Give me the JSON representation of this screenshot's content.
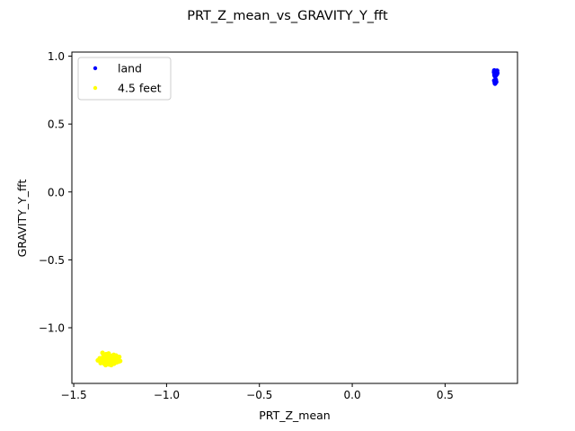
{
  "chart_data": {
    "type": "scatter",
    "title": "PRT_Z_mean_vs_GRAVITY_Y_fft",
    "xlabel": "PRT_Z_mean",
    "ylabel": "GRAVITY_Y_fft",
    "xlim": [
      -1.51,
      0.89
    ],
    "ylim": [
      -1.41,
      1.03
    ],
    "xticks": [
      -1.5,
      -1.0,
      -0.5,
      0.0,
      0.5
    ],
    "xtick_labels": [
      "−1.5",
      "−1.0",
      "−0.5",
      "0.0",
      "0.5"
    ],
    "yticks": [
      1.0,
      0.5,
      0.0,
      -0.5,
      -1.0
    ],
    "ytick_labels": [
      "1.0",
      "0.5",
      "0.0",
      "−0.5",
      "−1.0"
    ],
    "grid": false,
    "legend_position": "top-left",
    "series": [
      {
        "name": "land",
        "color": "#0000ff",
        "points": [
          [
            0.765,
            0.895
          ],
          [
            0.77,
            0.89
          ],
          [
            0.775,
            0.885
          ],
          [
            0.78,
            0.893
          ],
          [
            0.768,
            0.878
          ],
          [
            0.772,
            0.87
          ],
          [
            0.778,
            0.88
          ],
          [
            0.766,
            0.865
          ],
          [
            0.774,
            0.86
          ],
          [
            0.769,
            0.872
          ],
          [
            0.776,
            0.888
          ],
          [
            0.771,
            0.884
          ],
          [
            0.767,
            0.857
          ],
          [
            0.779,
            0.868
          ],
          [
            0.77,
            0.85
          ],
          [
            0.765,
            0.82
          ],
          [
            0.772,
            0.815
          ],
          [
            0.768,
            0.805
          ],
          [
            0.775,
            0.81
          ],
          [
            0.769,
            0.798
          ],
          [
            0.773,
            0.825
          ],
          [
            0.777,
            0.875
          ],
          [
            0.764,
            0.882
          ],
          [
            0.781,
            0.876
          ],
          [
            0.77,
            0.862
          ]
        ]
      },
      {
        "name": "4.5 feet",
        "color": "#ffff00",
        "points": [
          [
            -1.37,
            -1.24
          ],
          [
            -1.36,
            -1.225
          ],
          [
            -1.35,
            -1.25
          ],
          [
            -1.34,
            -1.21
          ],
          [
            -1.335,
            -1.265
          ],
          [
            -1.33,
            -1.235
          ],
          [
            -1.325,
            -1.195
          ],
          [
            -1.32,
            -1.255
          ],
          [
            -1.315,
            -1.225
          ],
          [
            -1.31,
            -1.27
          ],
          [
            -1.305,
            -1.205
          ],
          [
            -1.3,
            -1.245
          ],
          [
            -1.295,
            -1.23
          ],
          [
            -1.29,
            -1.26
          ],
          [
            -1.285,
            -1.2
          ],
          [
            -1.28,
            -1.24
          ],
          [
            -1.275,
            -1.22
          ],
          [
            -1.27,
            -1.255
          ],
          [
            -1.265,
            -1.235
          ],
          [
            -1.26,
            -1.25
          ],
          [
            -1.255,
            -1.215
          ],
          [
            -1.25,
            -1.245
          ],
          [
            -1.345,
            -1.185
          ],
          [
            -1.355,
            -1.26
          ],
          [
            -1.328,
            -1.275
          ],
          [
            -1.312,
            -1.19
          ],
          [
            -1.298,
            -1.275
          ],
          [
            -1.283,
            -1.265
          ],
          [
            -1.272,
            -1.205
          ],
          [
            -1.262,
            -1.228
          ],
          [
            -1.338,
            -1.228
          ],
          [
            -1.318,
            -1.24
          ],
          [
            -1.308,
            -1.232
          ],
          [
            -1.292,
            -1.215
          ],
          [
            -1.342,
            -1.248
          ],
          [
            -1.322,
            -1.21
          ],
          [
            -1.302,
            -1.258
          ],
          [
            -1.288,
            -1.238
          ],
          [
            -1.278,
            -1.228
          ],
          [
            -1.348,
            -1.236
          ]
        ]
      }
    ]
  }
}
